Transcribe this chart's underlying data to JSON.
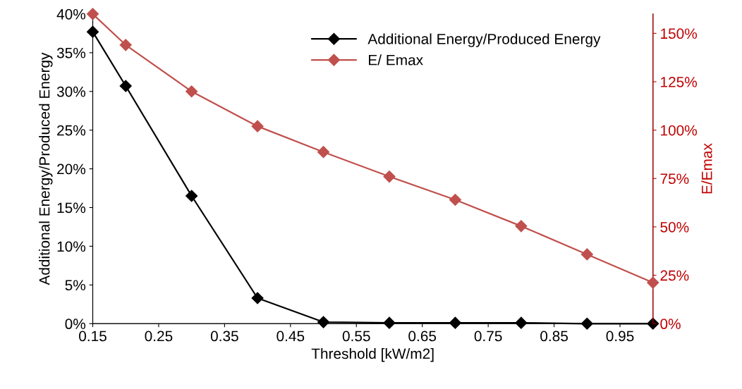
{
  "chart_data": {
    "type": "line",
    "xlabel": "Threshold [kW/m2]",
    "ylabel": "Additional Energy/Produced Energy",
    "y2label": "E/Emax",
    "x": [
      0.15,
      0.2,
      0.3,
      0.4,
      0.5,
      0.6,
      0.7,
      0.8,
      0.9,
      1.0
    ],
    "series": [
      {
        "name": "Additional Energy/Produced Energy",
        "color": "#000000",
        "values": [
          37.7,
          30.7,
          16.5,
          3.3,
          0.2,
          0.1,
          0.1,
          0.1,
          0,
          0
        ]
      },
      {
        "name": "E/ Emax",
        "color": "#c0504d",
        "axis": "y2",
        "values": [
          160,
          144,
          120,
          102,
          88.7,
          76,
          64,
          50.4,
          35.8,
          21.2
        ]
      }
    ],
    "xlim": [
      0.15,
      1.0
    ],
    "xticks": [
      0.15,
      0.25,
      0.35,
      0.45,
      0.55,
      0.65,
      0.75,
      0.85,
      0.95
    ],
    "ylim": [
      0,
      40
    ],
    "yticks": [
      {
        "value": 0,
        "label": "0%"
      },
      {
        "value": 5,
        "label": "5%"
      },
      {
        "value": 10,
        "label": "10%"
      },
      {
        "value": 15,
        "label": "15%"
      },
      {
        "value": 20,
        "label": "20%"
      },
      {
        "value": 25,
        "label": "25%"
      },
      {
        "value": 30,
        "label": "30%"
      },
      {
        "value": 35,
        "label": "35%"
      },
      {
        "value": 40,
        "label": "40%"
      }
    ],
    "y2lim": [
      0,
      160
    ],
    "y2ticks": [
      {
        "value": 0,
        "label": "0%"
      },
      {
        "value": 25,
        "label": "25%"
      },
      {
        "value": 50,
        "label": "50%"
      },
      {
        "value": 75,
        "label": "75%"
      },
      {
        "value": 100,
        "label": "100%"
      },
      {
        "value": 125,
        "label": "125%"
      },
      {
        "value": 150,
        "label": "150%"
      }
    ],
    "marker": "diamond",
    "line_style": "solid",
    "grid": false,
    "legend": "top right"
  }
}
